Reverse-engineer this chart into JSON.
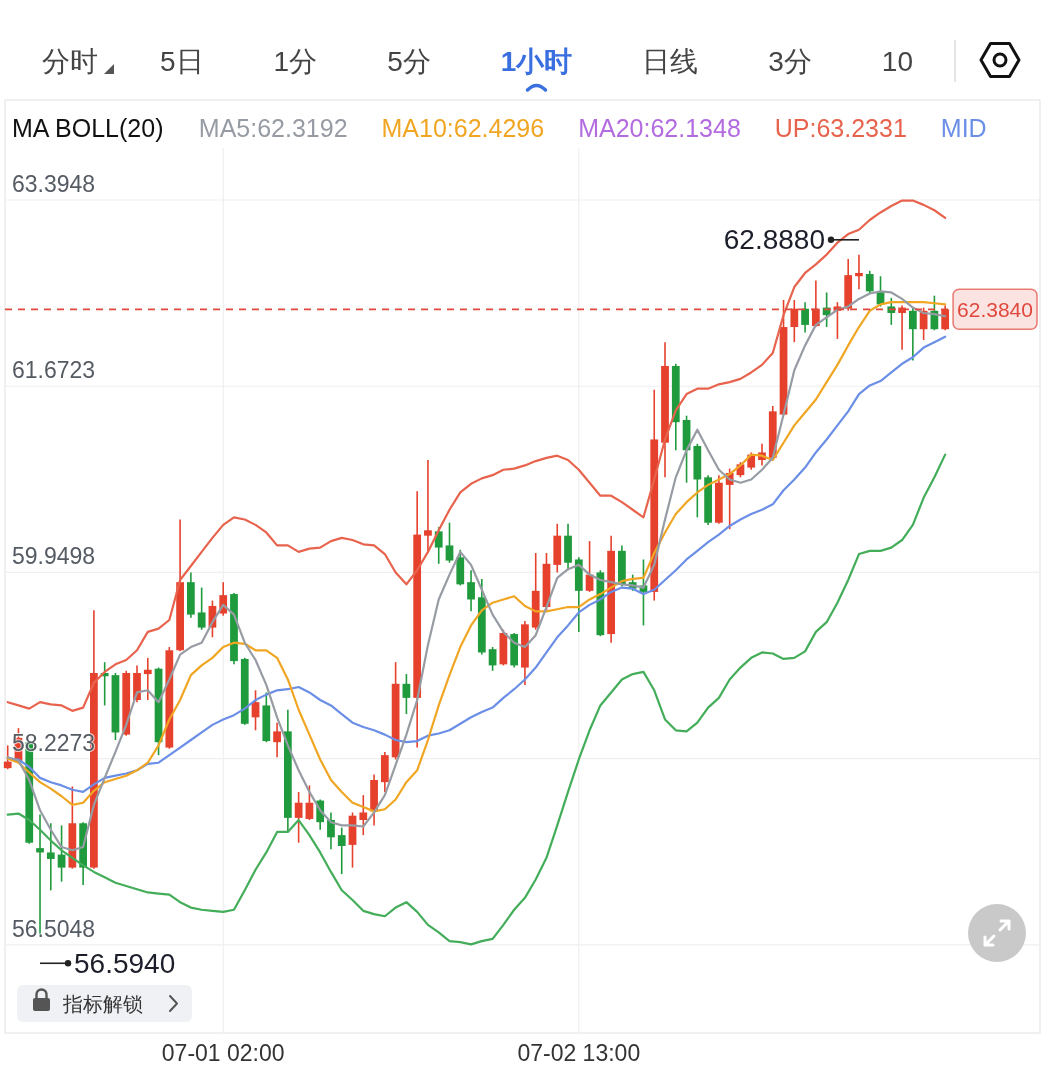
{
  "chart_data": {
    "type": "candlestick",
    "legend_title": "MA BOLL(20)",
    "legend": "top",
    "grid": true,
    "categories": [
      null,
      null,
      null,
      null,
      null,
      null,
      null,
      null,
      null,
      null,
      null,
      null,
      null,
      null,
      null,
      null,
      null,
      null,
      null,
      null,
      "07-01 02:00",
      null,
      null,
      null,
      null,
      null,
      null,
      null,
      null,
      null,
      null,
      null,
      null,
      null,
      null,
      null,
      null,
      null,
      null,
      null,
      null,
      null,
      null,
      null,
      null,
      null,
      null,
      null,
      null,
      null,
      null,
      null,
      null,
      "07-02 13:00",
      null,
      null,
      null,
      null,
      null,
      null,
      null,
      null,
      null,
      null,
      null,
      null,
      null,
      null,
      null,
      null,
      null,
      null,
      null,
      null,
      null,
      null,
      null,
      null,
      null,
      null,
      null,
      null,
      null,
      null,
      null,
      null,
      null,
      null
    ],
    "ohlc": [
      [
        58.14,
        58.35,
        58.13,
        58.2
      ],
      [
        58.2,
        58.51,
        58.19,
        58.42
      ],
      [
        58.38,
        58.39,
        57.44,
        57.45
      ],
      [
        57.4,
        57.71,
        56.594,
        57.36
      ],
      [
        57.36,
        57.63,
        57.01,
        57.3
      ],
      [
        57.34,
        57.61,
        57.09,
        57.22
      ],
      [
        57.22,
        57.97,
        57.21,
        57.63
      ],
      [
        57.63,
        57.64,
        57.06,
        57.22
      ],
      [
        57.22,
        59.6,
        57.21,
        59.02
      ],
      [
        59.02,
        59.12,
        58.72,
        58.99
      ],
      [
        59.0,
        59.02,
        58.4,
        58.47
      ],
      [
        58.45,
        59.04,
        58.44,
        59.02
      ],
      [
        58.77,
        59.09,
        58.75,
        59.02
      ],
      [
        59.01,
        59.16,
        58.77,
        59.05
      ],
      [
        59.06,
        59.07,
        58.26,
        58.38
      ],
      [
        58.33,
        59.26,
        58.32,
        59.23
      ],
      [
        59.23,
        60.44,
        59.22,
        59.86
      ],
      [
        59.86,
        59.95,
        59.53,
        59.56
      ],
      [
        59.58,
        59.81,
        59.42,
        59.44
      ],
      [
        59.44,
        59.69,
        59.35,
        59.64
      ],
      [
        59.57,
        59.86,
        59.55,
        59.74
      ],
      [
        59.75,
        59.76,
        59.1,
        59.13
      ],
      [
        59.15,
        59.16,
        58.54,
        58.55
      ],
      [
        58.61,
        58.86,
        58.49,
        58.75
      ],
      [
        58.72,
        58.84,
        58.38,
        58.39
      ],
      [
        58.38,
        58.56,
        58.24,
        58.48
      ],
      [
        58.48,
        58.68,
        57.55,
        57.68
      ],
      [
        57.68,
        57.92,
        57.45,
        57.82
      ],
      [
        57.67,
        57.98,
        57.66,
        57.82
      ],
      [
        57.84,
        57.85,
        57.57,
        57.64
      ],
      [
        57.66,
        57.73,
        57.39,
        57.5
      ],
      [
        57.52,
        57.59,
        57.16,
        57.42
      ],
      [
        57.43,
        57.73,
        57.22,
        57.7
      ],
      [
        57.66,
        57.89,
        57.52,
        57.73
      ],
      [
        57.74,
        58.08,
        57.61,
        58.03
      ],
      [
        58.01,
        58.29,
        57.92,
        58.26
      ],
      [
        58.24,
        59.12,
        58.22,
        58.92
      ],
      [
        58.92,
        59.01,
        58.64,
        58.79
      ],
      [
        58.79,
        60.7,
        58.33,
        60.3
      ],
      [
        60.29,
        60.99,
        60.13,
        60.34
      ],
      [
        60.33,
        60.37,
        60.03,
        60.18
      ],
      [
        60.2,
        60.41,
        60.04,
        60.06
      ],
      [
        60.09,
        60.16,
        59.83,
        59.84
      ],
      [
        59.86,
        59.97,
        59.59,
        59.7
      ],
      [
        59.72,
        59.89,
        59.19,
        59.21
      ],
      [
        59.24,
        59.26,
        59.04,
        59.09
      ],
      [
        59.1,
        59.42,
        59.09,
        59.39
      ],
      [
        59.38,
        59.39,
        59.07,
        59.09
      ],
      [
        59.07,
        59.5,
        58.91,
        59.47
      ],
      [
        59.44,
        60.13,
        59.42,
        59.78
      ],
      [
        59.63,
        60.13,
        59.6,
        60.03
      ],
      [
        60.02,
        60.4,
        59.95,
        60.29
      ],
      [
        60.29,
        60.4,
        59.97,
        60.04
      ],
      [
        60.07,
        60.09,
        59.4,
        59.78
      ],
      [
        59.78,
        60.24,
        59.77,
        59.93
      ],
      [
        59.95,
        59.97,
        59.36,
        59.37
      ],
      [
        59.38,
        60.29,
        59.3,
        60.15
      ],
      [
        60.15,
        60.2,
        59.82,
        59.84
      ],
      [
        59.86,
        59.93,
        59.78,
        59.8
      ],
      [
        59.83,
        60.07,
        59.46,
        59.77
      ],
      [
        59.77,
        61.64,
        59.69,
        61.18
      ],
      [
        61.15,
        62.08,
        60.83,
        61.86
      ],
      [
        61.86,
        61.88,
        61.08,
        61.34
      ],
      [
        61.36,
        61.4,
        60.78,
        61.08
      ],
      [
        61.12,
        61.14,
        60.46,
        60.81
      ],
      [
        60.83,
        60.85,
        60.39,
        60.41
      ],
      [
        60.41,
        60.85,
        60.4,
        60.78
      ],
      [
        60.76,
        60.91,
        60.35,
        60.87
      ],
      [
        60.85,
        60.97,
        60.83,
        60.95
      ],
      [
        60.92,
        61.06,
        60.9,
        61.04
      ],
      [
        60.99,
        61.14,
        60.94,
        61.06
      ],
      [
        61.01,
        61.49,
        60.99,
        61.44
      ],
      [
        61.41,
        62.47,
        61.4,
        62.22
      ],
      [
        62.22,
        62.47,
        62.08,
        62.39
      ],
      [
        62.39,
        62.45,
        62.17,
        62.24
      ],
      [
        62.23,
        62.65,
        62.22,
        62.39
      ],
      [
        62.4,
        62.54,
        62.22,
        62.33
      ],
      [
        62.37,
        62.45,
        62.11,
        62.41
      ],
      [
        62.39,
        62.85,
        62.37,
        62.7
      ],
      [
        62.69,
        62.888,
        62.57,
        62.72
      ],
      [
        62.71,
        62.74,
        62.53,
        62.55
      ],
      [
        62.55,
        62.69,
        62.41,
        62.43
      ],
      [
        62.41,
        62.49,
        62.24,
        62.35
      ],
      [
        62.35,
        62.42,
        62.01,
        62.4
      ],
      [
        62.37,
        62.4,
        61.91,
        62.2
      ],
      [
        62.2,
        62.4,
        62.1,
        62.37
      ],
      [
        62.37,
        62.51,
        62.19,
        62.2
      ],
      [
        62.2,
        62.42,
        62.19,
        62.384
      ]
    ],
    "colors": [
      "#e5412d",
      "#e5412d",
      "#1f9a3c",
      "#1f9a3c",
      "#1f9a3c",
      "#1f9a3c",
      "#e5412d",
      "#1f9a3c",
      "#e5412d",
      "#1f9a3c",
      "#1f9a3c",
      "#e5412d",
      "#e5412d",
      "#e5412d",
      "#1f9a3c",
      "#e5412d",
      "#e5412d",
      "#1f9a3c",
      "#1f9a3c",
      "#e5412d",
      "#e5412d",
      "#1f9a3c",
      "#1f9a3c",
      "#e5412d",
      "#1f9a3c",
      "#e5412d",
      "#1f9a3c",
      "#e5412d",
      "#e5412d",
      "#1f9a3c",
      "#1f9a3c",
      "#1f9a3c",
      "#e5412d",
      "#e5412d",
      "#e5412d",
      "#e5412d",
      "#e5412d",
      "#1f9a3c",
      "#e5412d",
      "#e5412d",
      "#1f9a3c",
      "#1f9a3c",
      "#1f9a3c",
      "#1f9a3c",
      "#1f9a3c",
      "#1f9a3c",
      "#e5412d",
      "#1f9a3c",
      "#e5412d",
      "#e5412d",
      "#e5412d",
      "#e5412d",
      "#1f9a3c",
      "#1f9a3c",
      "#e5412d",
      "#1f9a3c",
      "#e5412d",
      "#1f9a3c",
      "#1f9a3c",
      "#1f9a3c",
      "#e5412d",
      "#e5412d",
      "#1f9a3c",
      "#1f9a3c",
      "#1f9a3c",
      "#1f9a3c",
      "#e5412d",
      "#e5412d",
      "#e5412d",
      "#e5412d",
      "#e5412d",
      "#e5412d",
      "#e5412d",
      "#e5412d",
      "#1f9a3c",
      "#e5412d",
      "#1f9a3c",
      "#e5412d",
      "#e5412d",
      "#e5412d",
      "#1f9a3c",
      "#1f9a3c",
      "#1f9a3c",
      "#e5412d",
      "#1f9a3c",
      "#e5412d",
      "#1f9a3c",
      "#e5412d"
    ],
    "series": [
      {
        "type": "line",
        "name": "MA5:62.3192",
        "color": "#979ca4",
        "values": [
          58.24,
          58.21,
          58.03,
          57.75,
          57.57,
          57.41,
          57.38,
          57.41,
          57.8,
          58.05,
          58.29,
          58.54,
          58.84,
          58.86,
          58.75,
          58.96,
          59.19,
          59.26,
          59.3,
          59.49,
          59.65,
          59.56,
          59.3,
          59.14,
          58.91,
          58.61,
          58.35,
          58.12,
          57.92,
          57.75,
          57.64,
          57.61,
          57.61,
          57.6,
          57.73,
          57.89,
          58.17,
          58.45,
          58.77,
          59.28,
          59.7,
          59.93,
          60.14,
          60.02,
          59.79,
          59.56,
          59.4,
          59.3,
          59.26,
          59.37,
          59.63,
          59.9,
          59.98,
          60.02,
          59.93,
          59.88,
          59.86,
          59.84,
          59.83,
          59.81,
          60.02,
          60.44,
          60.83,
          61.08,
          61.27,
          61.08,
          60.9,
          60.81,
          60.78,
          60.81,
          60.9,
          61.01,
          61.41,
          61.82,
          62.05,
          62.24,
          62.31,
          62.38,
          62.41,
          62.48,
          62.53,
          62.55,
          62.54,
          62.48,
          62.4,
          62.35,
          62.34,
          62.32
        ]
      },
      {
        "type": "line",
        "name": "MA10:62.4296",
        "color": "#f0a623",
        "values": [
          58.23,
          58.19,
          58.1,
          58.01,
          57.95,
          57.88,
          57.8,
          57.82,
          57.93,
          58.01,
          58.04,
          58.07,
          58.12,
          58.19,
          58.35,
          58.59,
          58.77,
          59.0,
          59.09,
          59.16,
          59.26,
          59.3,
          59.29,
          59.23,
          59.23,
          59.16,
          58.96,
          58.68,
          58.45,
          58.22,
          58.03,
          57.92,
          57.82,
          57.78,
          57.74,
          57.76,
          57.85,
          58.01,
          58.12,
          58.4,
          58.72,
          59.0,
          59.26,
          59.46,
          59.6,
          59.67,
          59.7,
          59.73,
          59.64,
          59.59,
          59.59,
          59.61,
          59.63,
          59.63,
          59.7,
          59.75,
          59.81,
          59.87,
          59.89,
          59.9,
          60.13,
          60.32,
          60.49,
          60.6,
          60.69,
          60.76,
          60.81,
          60.86,
          60.94,
          61.04,
          61.03,
          60.99,
          61.15,
          61.31,
          61.43,
          61.55,
          61.71,
          61.87,
          62.05,
          62.22,
          62.37,
          62.43,
          62.45,
          62.45,
          62.45,
          62.45,
          62.44,
          62.43
        ]
      },
      {
        "type": "line",
        "name": "MA20:62.1348",
        "color": "#b36be0",
        "values": [
          null,
          null,
          null,
          null,
          null,
          null,
          null,
          null,
          null,
          null,
          null,
          null,
          null,
          null,
          null,
          null,
          null,
          null,
          null,
          null,
          null,
          null,
          null,
          null,
          null,
          null,
          null,
          null,
          null,
          null,
          null,
          null,
          null,
          null,
          null,
          null,
          null,
          null,
          null,
          null,
          null,
          null,
          null,
          null,
          null,
          null,
          null,
          null,
          null,
          null,
          null,
          null,
          null,
          null,
          null,
          null,
          null,
          null,
          null,
          null,
          null,
          null,
          null,
          null,
          null,
          null,
          null,
          null,
          null,
          null,
          null,
          null,
          null,
          null,
          null,
          null,
          null,
          null,
          null,
          null,
          null,
          null,
          null,
          null,
          null,
          null,
          null,
          null
        ]
      },
      {
        "type": "line",
        "name": "UP:63.2331",
        "color": "#e8634d",
        "values": [
          58.75,
          58.72,
          58.69,
          58.75,
          58.73,
          58.72,
          58.67,
          58.7,
          58.93,
          59.03,
          59.1,
          59.14,
          59.23,
          59.4,
          59.43,
          59.51,
          59.88,
          60.01,
          60.14,
          60.27,
          60.39,
          60.46,
          60.44,
          60.39,
          60.32,
          60.2,
          60.2,
          60.14,
          60.17,
          60.18,
          60.24,
          60.27,
          60.25,
          60.21,
          60.2,
          60.12,
          59.95,
          59.84,
          59.97,
          60.14,
          60.34,
          60.53,
          60.69,
          60.77,
          60.82,
          60.85,
          60.9,
          60.91,
          60.94,
          60.98,
          61.01,
          61.03,
          60.99,
          60.9,
          60.78,
          60.66,
          60.66,
          60.6,
          60.53,
          60.46,
          60.81,
          61.18,
          61.45,
          61.6,
          61.65,
          61.65,
          61.69,
          61.71,
          61.74,
          61.8,
          61.87,
          61.98,
          62.33,
          62.59,
          62.72,
          62.8,
          62.89,
          63.0,
          63.08,
          63.12,
          63.21,
          63.28,
          63.34,
          63.39,
          63.39,
          63.35,
          63.3,
          63.23
        ]
      },
      {
        "type": "line",
        "name": "MID",
        "color": "#6b8ee6",
        "values": [
          58.23,
          58.22,
          58.15,
          58.05,
          58.01,
          57.98,
          57.94,
          57.92,
          57.99,
          58.05,
          58.07,
          58.09,
          58.12,
          58.18,
          58.19,
          58.26,
          58.33,
          58.4,
          58.47,
          58.54,
          58.59,
          58.63,
          58.69,
          58.77,
          58.82,
          58.86,
          58.87,
          58.89,
          58.84,
          58.77,
          58.72,
          58.64,
          58.56,
          58.52,
          58.49,
          58.45,
          58.4,
          58.38,
          58.39,
          58.44,
          58.46,
          58.49,
          58.55,
          58.61,
          58.66,
          58.7,
          58.79,
          58.87,
          58.96,
          59.07,
          59.21,
          59.35,
          59.46,
          59.58,
          59.65,
          59.7,
          59.77,
          59.81,
          59.8,
          59.75,
          59.79,
          59.88,
          59.97,
          60.07,
          60.15,
          60.23,
          60.3,
          60.38,
          60.44,
          60.49,
          60.53,
          60.58,
          60.71,
          60.81,
          60.92,
          61.06,
          61.18,
          61.31,
          61.44,
          61.6,
          61.68,
          61.72,
          61.8,
          61.88,
          61.94,
          62.03,
          62.08,
          62.13
        ]
      },
      {
        "type": "line",
        "color": "#43ad59",
        "values": [
          57.71,
          57.72,
          57.66,
          57.57,
          57.47,
          57.38,
          57.31,
          57.24,
          57.18,
          57.13,
          57.08,
          57.05,
          57.02,
          56.99,
          56.98,
          56.97,
          56.9,
          56.85,
          56.83,
          56.82,
          56.81,
          56.83,
          57.01,
          57.2,
          57.36,
          57.55,
          57.55,
          57.66,
          57.52,
          57.36,
          57.18,
          57.01,
          56.92,
          56.82,
          56.79,
          56.77,
          56.85,
          56.9,
          56.81,
          56.69,
          56.62,
          56.54,
          56.53,
          56.51,
          56.54,
          56.56,
          56.69,
          56.83,
          56.94,
          57.11,
          57.31,
          57.61,
          57.92,
          58.22,
          58.49,
          58.72,
          58.84,
          58.96,
          59.01,
          59.03,
          58.86,
          58.59,
          58.49,
          58.48,
          58.56,
          58.7,
          58.79,
          58.96,
          59.07,
          59.16,
          59.21,
          59.2,
          59.15,
          59.16,
          59.22,
          59.4,
          59.49,
          59.67,
          59.88,
          60.12,
          60.15,
          60.15,
          60.18,
          60.25,
          60.39,
          60.64,
          60.83,
          61.04
        ]
      }
    ],
    "ylim": [
      55.69,
      64.32
    ],
    "yticks": [
      63.3948,
      61.6723,
      59.9498,
      58.2273,
      56.5048
    ],
    "ref_lines": [
      {
        "axis": "y",
        "value": 62.384,
        "label": "62.3840",
        "color": "#e0483c",
        "line_style": "dashed"
      }
    ],
    "annotations": [
      "62.8880",
      "56.5940",
      "分时",
      "5日",
      "1分",
      "5分",
      "1小时",
      "日线",
      "3分",
      "10",
      "指标解锁"
    ]
  }
}
